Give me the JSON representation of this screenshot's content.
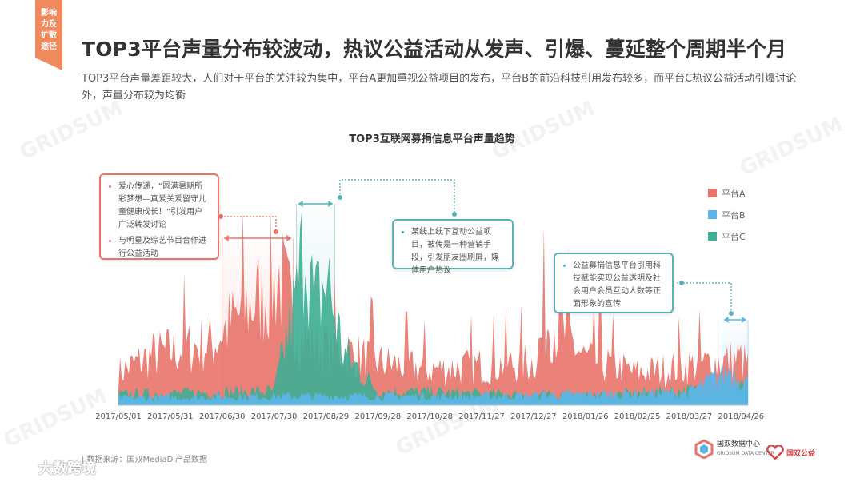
{
  "corner_tag": [
    "影响",
    "力及",
    "扩散",
    "途径"
  ],
  "header": {
    "title": "TOP3平台声量分布较波动，热议公益活动从发声、引爆、蔓延整个周期半个月",
    "subtitle": "TOP3平台声量差距较大，人们对于平台的关注较为集中，平台A更加重视公益项目的发布，平台B的前沿科技引用发布较多，而平台C热议公益活动引爆讨论外，声量分布较为均衡"
  },
  "annotations": {
    "red": [
      "爱心传递，“圆满暑期所彩梦想—真爱关爱留守儿童健康成长！”引发用户广泛转发讨论",
      "与明星及综艺节目合作进行公益活动"
    ],
    "teal": [
      "某线上线下互动公益项目，被传是一种营销手段，引发朋友圈刷屏，媒体用户热议"
    ],
    "blue": [
      "公益募捐信息平台引用科技赋能实现公益透明及社会用户会员互动人数等正面形象的宣传"
    ]
  },
  "footer": {
    "source": "| 数据来源：国双MediaDi产品数据",
    "logo1_line1": "国双数据中心",
    "logo1_line2": "GRIDSUM DATA CENTER",
    "logo2": "国双公益",
    "brand": "大数跨境"
  },
  "colors": {
    "platform_a": "#e8746c",
    "platform_b": "#5bb5e6",
    "platform_c": "#3fae94",
    "accent": "#f08a5d"
  },
  "chart_data": {
    "type": "area",
    "title": "TOP3互联网募捐信息平台声量趋势",
    "x_start": "2017/05/01",
    "x_end": "2018/04/30",
    "x_tick_labels": [
      "2017/05/01",
      "2017/05/31",
      "2017/06/30",
      "2017/07/30",
      "2017/08/29",
      "2017/09/28",
      "2017/10/28",
      "2017/11/27",
      "2017/12/27",
      "2018/01/26",
      "2018/02/25",
      "2018/03/27",
      "2018/04/26"
    ],
    "y_axis_shown": false,
    "grid": false,
    "legend_position": "right",
    "series": [
      {
        "name": "平台A",
        "key_points": [
          {
            "date": "2017/05/01",
            "value": 18
          },
          {
            "date": "2017/05/20",
            "value": 28
          },
          {
            "date": "2017/06/10",
            "value": 32
          },
          {
            "date": "2017/06/25",
            "value": 35
          },
          {
            "date": "2017/07/01",
            "value": 42
          },
          {
            "date": "2017/07/15",
            "value": 55
          },
          {
            "date": "2017/07/25",
            "value": 62
          },
          {
            "date": "2017/08/02",
            "value": 72
          },
          {
            "date": "2017/08/15",
            "value": 38
          },
          {
            "date": "2017/08/29",
            "value": 32
          },
          {
            "date": "2017/09/10",
            "value": 30
          },
          {
            "date": "2017/09/28",
            "value": 24
          },
          {
            "date": "2017/10/28",
            "value": 20
          },
          {
            "date": "2017/11/27",
            "value": 22
          },
          {
            "date": "2017/12/27",
            "value": 24
          },
          {
            "date": "2018/01/05",
            "value": 50
          },
          {
            "date": "2018/01/26",
            "value": 26
          },
          {
            "date": "2018/02/25",
            "value": 18
          },
          {
            "date": "2018/03/27",
            "value": 22
          },
          {
            "date": "2018/04/26",
            "value": 26
          },
          {
            "date": "2018/04/30",
            "value": 22
          }
        ]
      },
      {
        "name": "平台B",
        "key_points": [
          {
            "date": "2017/05/01",
            "value": 4
          },
          {
            "date": "2017/08/01",
            "value": 5
          },
          {
            "date": "2017/11/27",
            "value": 5
          },
          {
            "date": "2018/01/26",
            "value": 6
          },
          {
            "date": "2018/03/27",
            "value": 7
          },
          {
            "date": "2018/04/20",
            "value": 20
          },
          {
            "date": "2018/04/30",
            "value": 12
          }
        ]
      },
      {
        "name": "平台C",
        "key_points": [
          {
            "date": "2017/05/01",
            "value": 6
          },
          {
            "date": "2017/07/30",
            "value": 8
          },
          {
            "date": "2017/08/12",
            "value": 60
          },
          {
            "date": "2017/08/17",
            "value": 100
          },
          {
            "date": "2017/08/22",
            "value": 55
          },
          {
            "date": "2017/08/30",
            "value": 70
          },
          {
            "date": "2017/09/08",
            "value": 30
          },
          {
            "date": "2017/09/28",
            "value": 8
          },
          {
            "date": "2018/01/26",
            "value": 5
          },
          {
            "date": "2018/04/26",
            "value": 10
          },
          {
            "date": "2018/04/30",
            "value": 8
          }
        ]
      }
    ],
    "highlight_ranges": [
      {
        "start": "2017/06/30",
        "end": "2017/08/10",
        "series": "平台A"
      },
      {
        "start": "2017/08/12",
        "end": "2017/09/03",
        "series": "平台C"
      },
      {
        "start": "2018/04/15",
        "end": "2018/04/30",
        "series": "平台B"
      }
    ]
  }
}
